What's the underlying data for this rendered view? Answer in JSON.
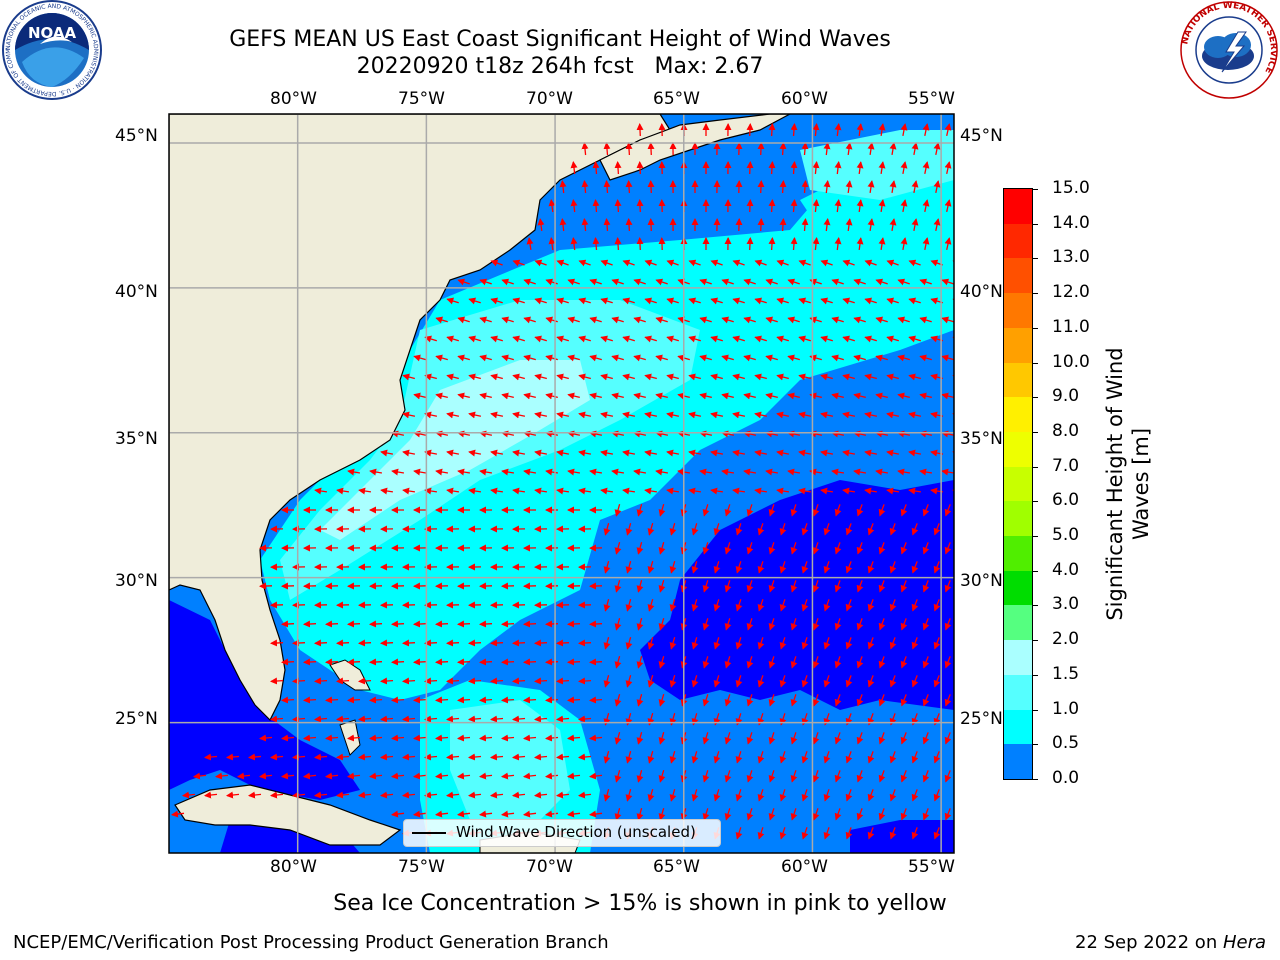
{
  "title": {
    "line1": "GEFS MEAN US East Coast Significant Height of Wind Waves",
    "line2": "20220920 t18z 264h fcst   Max: 2.67"
  },
  "map": {
    "lon_labels": [
      "80°W",
      "75°W",
      "70°W",
      "65°W",
      "60°W",
      "55°W"
    ],
    "lat_labels": [
      "45°N",
      "40°N",
      "35°N",
      "30°N",
      "25°N"
    ],
    "lon_range": [
      -85,
      -54.5
    ],
    "lat_range": [
      20.5,
      46
    ],
    "legend_label": "Wind Wave Direction (unscaled)",
    "colors": {
      "land": "#efedda",
      "h_0_05": "#0000ff",
      "h_05_10": "#0080ff",
      "h_10_15": "#00ffff",
      "h_15_20": "#55ffff",
      "h_20_30": "#aaffff",
      "arrow": "#ff0000"
    }
  },
  "colorbar": {
    "label_line1": "Significant Height of Wind",
    "label_line2": "Waves [m]",
    "ticks": [
      "15.0",
      "14.0",
      "13.0",
      "12.0",
      "11.0",
      "10.0",
      "9.0",
      "8.0",
      "7.0",
      "6.0",
      "5.0",
      "4.0",
      "3.0",
      "2.0",
      "1.5",
      "1.0",
      "0.5",
      "0.0"
    ],
    "colors": [
      "#ff0000",
      "#ff2800",
      "#ff5000",
      "#ff7800",
      "#ffa000",
      "#ffc800",
      "#fff000",
      "#eeff00",
      "#c8ff00",
      "#a0ff00",
      "#50ee00",
      "#00dd00",
      "#55ff80",
      "#aaffff",
      "#55ffff",
      "#00ffff",
      "#0080ff",
      "#0000ff"
    ]
  },
  "note": "Sea Ice Concentration > 15% is shown in pink to yellow",
  "footer": {
    "left": "NCEP/EMC/Verification Post Processing Product Generation Branch",
    "right_prefix": "22 Sep 2022 on ",
    "right_italic": "Hera"
  },
  "logos": {
    "noaa_text": "NOAA",
    "noaa_ring_text": "NATIONAL OCEANIC AND ATMOSPHERIC ADMINISTRATION · U.S. DEPARTMENT OF COMMERCE",
    "nws_ring_text": "NATIONAL WEATHER SERVICE"
  }
}
